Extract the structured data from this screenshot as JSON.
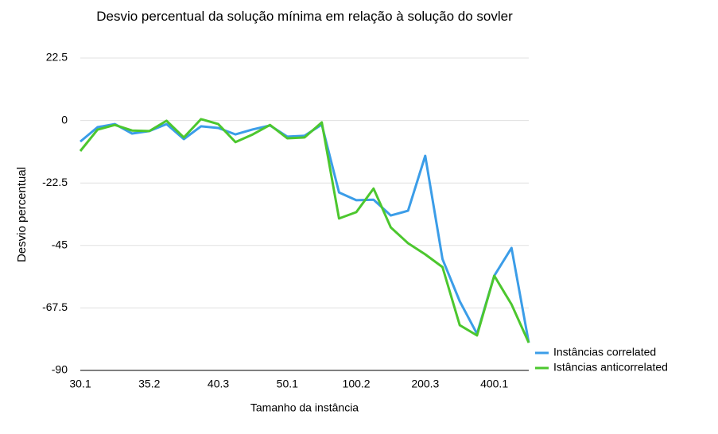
{
  "chart_data": {
    "type": "line",
    "title": "Desvio percentual da solução mínima em relação à solução do sovler",
    "x_label": "Tamanho da instância",
    "y_label": "Desvio percentual",
    "categories": [
      "30.1",
      null,
      null,
      null,
      "35.2",
      null,
      null,
      null,
      "40.3",
      null,
      null,
      null,
      "50.1",
      null,
      null,
      null,
      "100.2",
      null,
      null,
      null,
      "200.3",
      null,
      null,
      null,
      "400.1",
      null,
      null
    ],
    "series": [
      {
        "name": "Instâncias correlated",
        "color": "#3b9de8",
        "values": [
          -7.6,
          -2.4,
          -1.3,
          -4.7,
          -3.8,
          -1.3,
          -6.7,
          -2.1,
          -2.7,
          -5,
          -3.2,
          -1.8,
          -5.8,
          -5.5,
          -1.5,
          -25.9,
          -28.7,
          -28.5,
          -34.2,
          -32.5,
          -12.7,
          -49.9,
          -65.1,
          -76.8,
          -55.9,
          -45.9,
          -80
        ]
      },
      {
        "name": "Istâncias anticorrelated",
        "color": "#4cc72e",
        "values": [
          -11,
          -3.3,
          -1.6,
          -3.6,
          -3.8,
          -0.1,
          -6.1,
          0.5,
          -1.3,
          -7.8,
          -5,
          -1.6,
          -6.4,
          -6.1,
          -0.7,
          -35.3,
          -33,
          -24.5,
          -38.5,
          -44.2,
          -48.2,
          -52.8,
          -73.7,
          -77.4,
          -55.9,
          -66.2,
          -80
        ]
      }
    ],
    "ylim": [
      -90,
      22.5
    ],
    "yticks": [
      22.5,
      0,
      -22.5,
      -45,
      -67.5,
      -90
    ],
    "grid": true,
    "legend": "right"
  }
}
